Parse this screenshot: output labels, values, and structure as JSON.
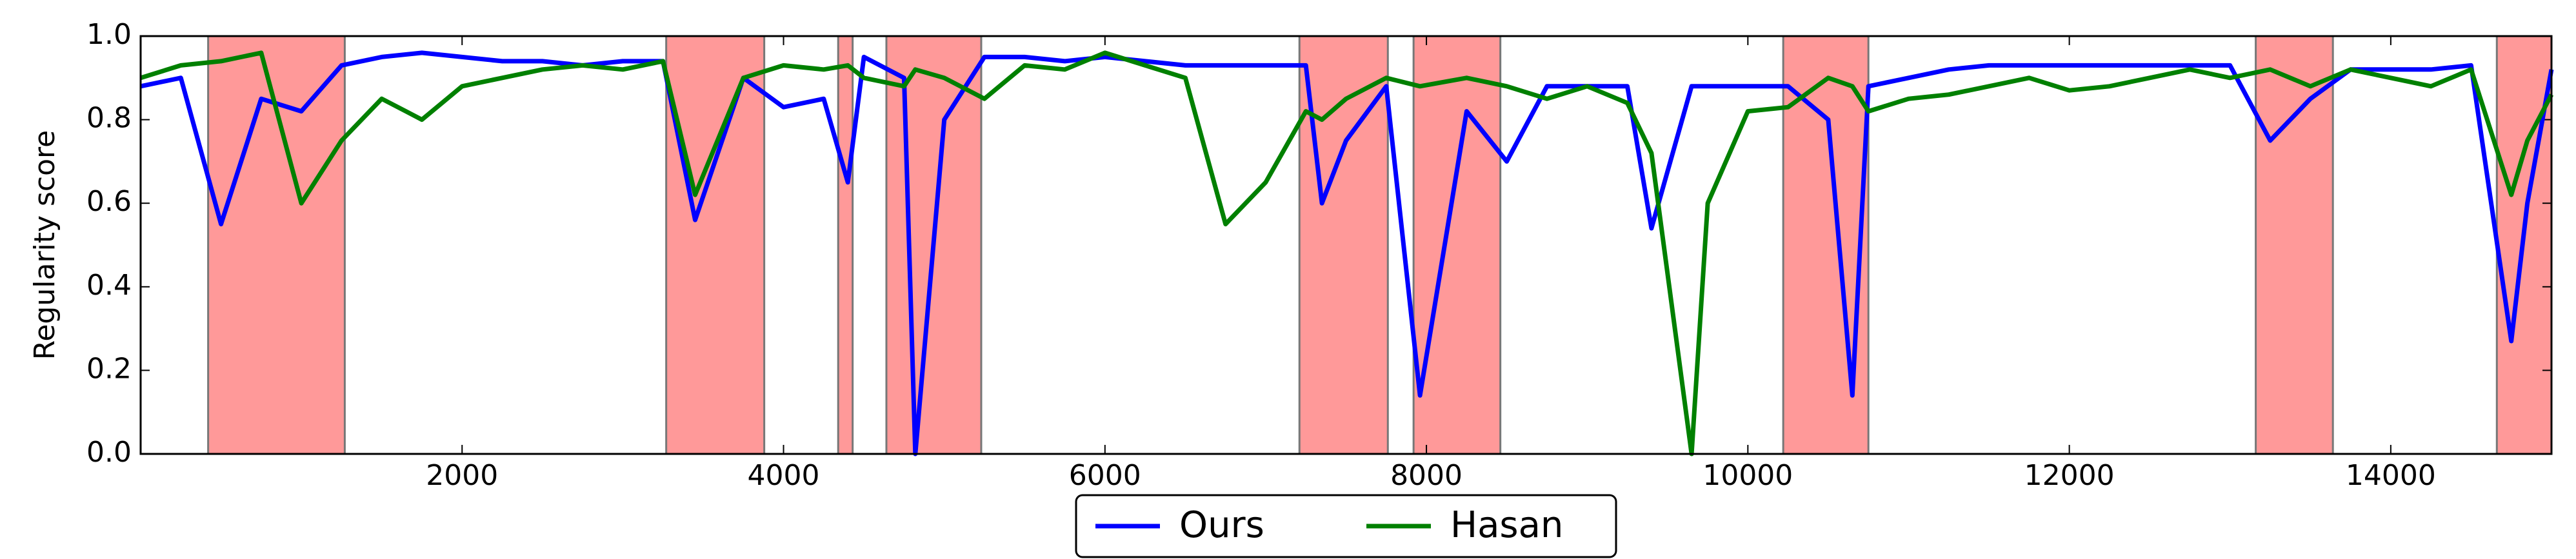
{
  "chart_data": {
    "type": "line",
    "ylabel": "Regularity score",
    "xlim": [
      0,
      15000
    ],
    "ylim": [
      0,
      1
    ],
    "xticks": [
      2000,
      4000,
      6000,
      8000,
      10000,
      12000,
      14000
    ],
    "yticks": [
      {
        "value": 0,
        "label": "0.0"
      },
      0.2,
      0.4,
      0.6,
      0.8,
      {
        "value": 1,
        "label": "1.0"
      }
    ],
    "legend": "lower center",
    "shaded_regions": [
      [
        420,
        1270
      ],
      [
        3270,
        3880
      ],
      [
        4340,
        4430
      ],
      [
        4640,
        5230
      ],
      [
        7210,
        7760
      ],
      [
        7920,
        8460
      ],
      [
        10220,
        10750
      ],
      [
        13160,
        13640
      ],
      [
        14660,
        15000
      ]
    ],
    "shade_color": "#ff9999",
    "x": [
      0,
      250,
      500,
      750,
      1000,
      1250,
      1500,
      1750,
      2000,
      2250,
      2500,
      2750,
      3000,
      3250,
      3450,
      3750,
      4000,
      4250,
      4400,
      4500,
      4750,
      4820,
      5000,
      5250,
      5500,
      5750,
      6000,
      6250,
      6500,
      6750,
      7000,
      7250,
      7350,
      7500,
      7750,
      7960,
      8250,
      8500,
      8750,
      9000,
      9250,
      9400,
      9650,
      9750,
      10000,
      10250,
      10500,
      10650,
      10750,
      11000,
      11250,
      11500,
      11750,
      12000,
      12250,
      12500,
      12750,
      13000,
      13250,
      13500,
      13750,
      14000,
      14250,
      14500,
      14750,
      14850,
      15000
    ],
    "series": [
      {
        "name": "Ours",
        "color": "#0000ff",
        "values": [
          0.88,
          0.9,
          0.55,
          0.85,
          0.82,
          0.93,
          0.95,
          0.96,
          0.95,
          0.94,
          0.94,
          0.93,
          0.94,
          0.94,
          0.56,
          0.9,
          0.83,
          0.85,
          0.65,
          0.95,
          0.9,
          0.0,
          0.8,
          0.95,
          0.95,
          0.94,
          0.95,
          0.94,
          0.93,
          0.93,
          0.93,
          0.93,
          0.6,
          0.75,
          0.88,
          0.14,
          0.82,
          0.7,
          0.88,
          0.88,
          0.88,
          0.54,
          0.88,
          0.88,
          0.88,
          0.88,
          0.8,
          0.14,
          0.88,
          0.9,
          0.92,
          0.93,
          0.93,
          0.93,
          0.93,
          0.93,
          0.93,
          0.93,
          0.75,
          0.85,
          0.92,
          0.92,
          0.92,
          0.93,
          0.27,
          0.6,
          0.92
        ]
      },
      {
        "name": "Hasan",
        "color": "#008000",
        "values": [
          0.9,
          0.93,
          0.94,
          0.96,
          0.6,
          0.75,
          0.85,
          0.8,
          0.88,
          0.9,
          0.92,
          0.93,
          0.92,
          0.94,
          0.62,
          0.9,
          0.93,
          0.92,
          0.93,
          0.9,
          0.88,
          0.92,
          0.9,
          0.85,
          0.93,
          0.92,
          0.96,
          0.93,
          0.9,
          0.55,
          0.65,
          0.82,
          0.8,
          0.85,
          0.9,
          0.88,
          0.9,
          0.88,
          0.85,
          0.88,
          0.84,
          0.72,
          0.0,
          0.6,
          0.82,
          0.83,
          0.9,
          0.88,
          0.82,
          0.85,
          0.86,
          0.88,
          0.9,
          0.87,
          0.88,
          0.9,
          0.92,
          0.9,
          0.92,
          0.88,
          0.92,
          0.9,
          0.88,
          0.92,
          0.62,
          0.75,
          0.86
        ]
      }
    ]
  }
}
